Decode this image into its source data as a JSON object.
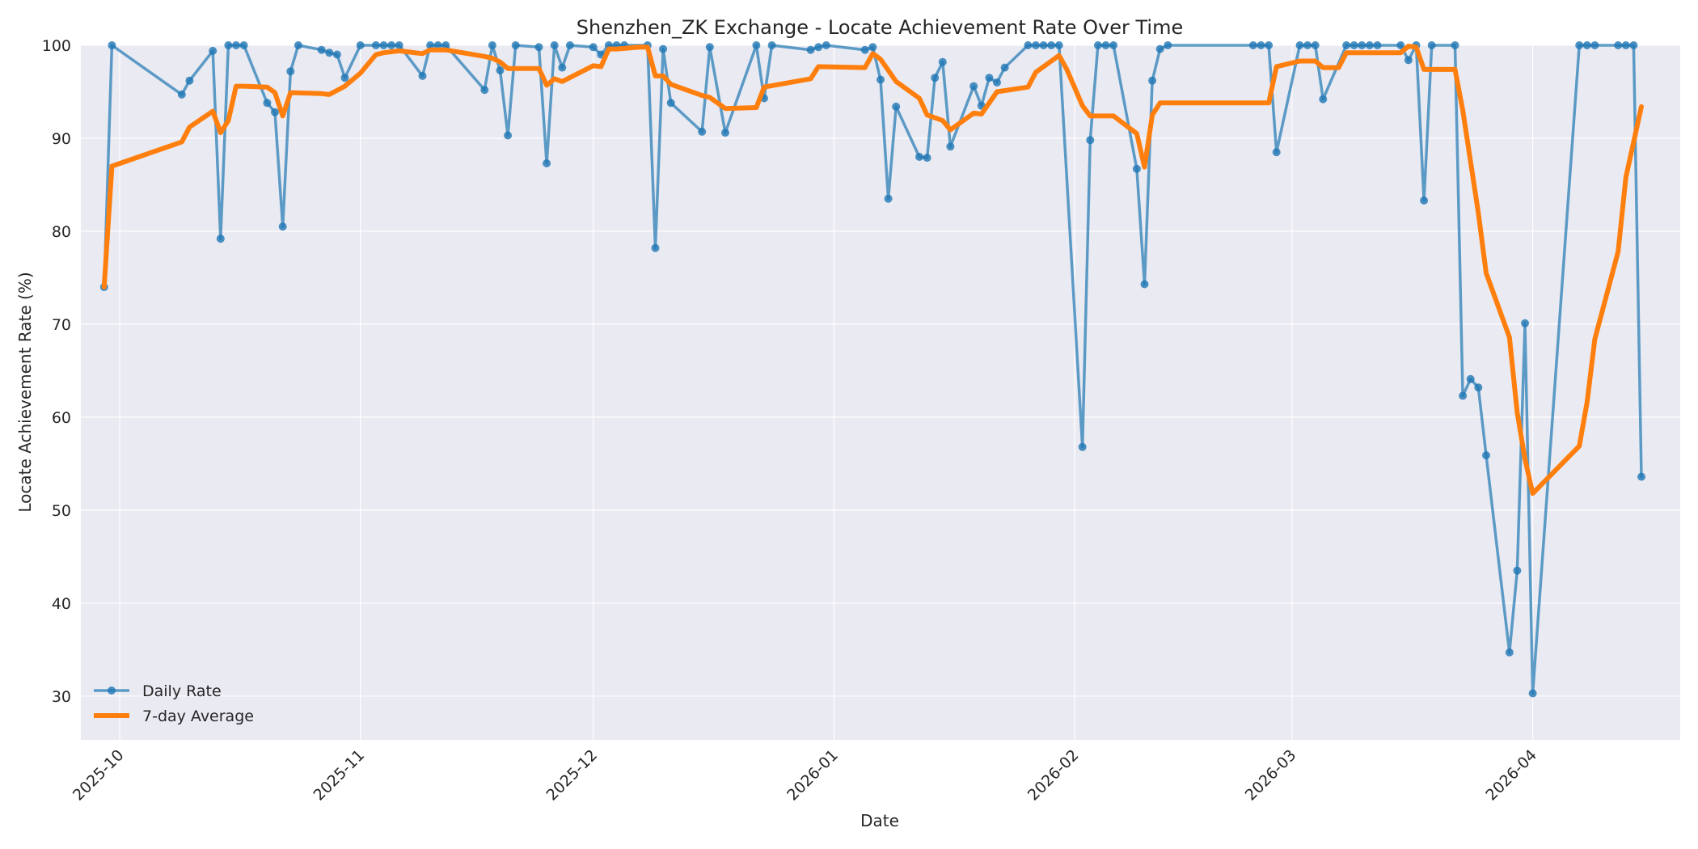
{
  "chart_data": {
    "type": "line",
    "title": "Shenzhen_ZK Exchange - Locate Achievement Rate Over Time",
    "xlabel": "Date",
    "ylabel": "Locate Achievement Rate (%)",
    "xlim": [
      "2025-09-26",
      "2026-04-20"
    ],
    "ylim": [
      25.3,
      100
    ],
    "x_ticks": [
      "2025-10",
      "2025-11",
      "2025-12",
      "2026-01",
      "2026-02",
      "2026-03",
      "2026-04"
    ],
    "y_ticks": [
      30,
      40,
      50,
      60,
      70,
      80,
      90,
      100
    ],
    "grid": true,
    "legend_position": "lower-left",
    "colors": {
      "daily": "#1f77b4",
      "average": "#ff7f0e",
      "plot_bg": "#eaeaf2",
      "grid": "#ffffff"
    },
    "series": [
      {
        "name": "Daily Rate",
        "style": "line-marker",
        "points": [
          [
            "2025-09-29",
            74.0
          ],
          [
            "2025-09-30",
            100.0
          ],
          [
            "2025-10-09",
            94.7
          ],
          [
            "2025-10-10",
            96.2
          ],
          [
            "2025-10-13",
            99.4
          ],
          [
            "2025-10-14",
            79.2
          ],
          [
            "2025-10-15",
            100.0
          ],
          [
            "2025-10-16",
            100.0
          ],
          [
            "2025-10-17",
            100.0
          ],
          [
            "2025-10-20",
            93.8
          ],
          [
            "2025-10-21",
            92.8
          ],
          [
            "2025-10-22",
            80.5
          ],
          [
            "2025-10-23",
            97.2
          ],
          [
            "2025-10-24",
            100.0
          ],
          [
            "2025-10-27",
            99.5
          ],
          [
            "2025-10-28",
            99.2
          ],
          [
            "2025-10-29",
            99.0
          ],
          [
            "2025-10-30",
            96.5
          ],
          [
            "2025-11-01",
            100.0
          ],
          [
            "2025-11-03",
            100.0
          ],
          [
            "2025-11-04",
            100.0
          ],
          [
            "2025-11-05",
            100.0
          ],
          [
            "2025-11-06",
            100.0
          ],
          [
            "2025-11-09",
            96.7
          ],
          [
            "2025-11-10",
            100.0
          ],
          [
            "2025-11-11",
            100.0
          ],
          [
            "2025-11-12",
            100.0
          ],
          [
            "2025-11-17",
            95.2
          ],
          [
            "2025-11-18",
            100.0
          ],
          [
            "2025-11-19",
            97.3
          ],
          [
            "2025-11-20",
            90.3
          ],
          [
            "2025-11-21",
            100.0
          ],
          [
            "2025-11-24",
            99.8
          ],
          [
            "2025-11-25",
            87.3
          ],
          [
            "2025-11-26",
            100.0
          ],
          [
            "2025-11-27",
            97.6
          ],
          [
            "2025-11-28",
            100.0
          ],
          [
            "2025-12-01",
            99.8
          ],
          [
            "2025-12-02",
            99.0
          ],
          [
            "2025-12-03",
            100.0
          ],
          [
            "2025-12-04",
            100.0
          ],
          [
            "2025-12-05",
            100.0
          ],
          [
            "2025-12-08",
            100.0
          ],
          [
            "2025-12-09",
            78.2
          ],
          [
            "2025-12-10",
            99.6
          ],
          [
            "2025-12-11",
            93.8
          ],
          [
            "2025-12-15",
            90.7
          ],
          [
            "2025-12-16",
            99.8
          ],
          [
            "2025-12-18",
            90.6
          ],
          [
            "2025-12-22",
            100.0
          ],
          [
            "2025-12-23",
            94.3
          ],
          [
            "2025-12-24",
            100.0
          ],
          [
            "2025-12-29",
            99.5
          ],
          [
            "2025-12-30",
            99.8
          ],
          [
            "2025-12-31",
            100.0
          ],
          [
            "2026-01-05",
            99.5
          ],
          [
            "2026-01-06",
            99.8
          ],
          [
            "2026-01-07",
            96.3
          ],
          [
            "2026-01-08",
            83.5
          ],
          [
            "2026-01-09",
            93.4
          ],
          [
            "2026-01-12",
            88.0
          ],
          [
            "2026-01-13",
            87.9
          ],
          [
            "2026-01-14",
            96.5
          ],
          [
            "2026-01-15",
            98.2
          ],
          [
            "2026-01-16",
            89.1
          ],
          [
            "2026-01-19",
            95.6
          ],
          [
            "2026-01-20",
            93.5
          ],
          [
            "2026-01-21",
            96.5
          ],
          [
            "2026-01-22",
            96.0
          ],
          [
            "2026-01-23",
            97.6
          ],
          [
            "2026-01-26",
            100.0
          ],
          [
            "2026-01-27",
            100.0
          ],
          [
            "2026-01-28",
            100.0
          ],
          [
            "2026-01-29",
            100.0
          ],
          [
            "2026-01-30",
            100.0
          ],
          [
            "2026-02-02",
            56.8
          ],
          [
            "2026-02-03",
            89.8
          ],
          [
            "2026-02-04",
            100.0
          ],
          [
            "2026-02-05",
            100.0
          ],
          [
            "2026-02-06",
            100.0
          ],
          [
            "2026-02-09",
            86.7
          ],
          [
            "2026-02-10",
            74.3
          ],
          [
            "2026-02-11",
            96.2
          ],
          [
            "2026-02-12",
            99.6
          ],
          [
            "2026-02-13",
            100.0
          ],
          [
            "2026-02-24",
            100.0
          ],
          [
            "2026-02-25",
            100.0
          ],
          [
            "2026-02-26",
            100.0
          ],
          [
            "2026-02-27",
            88.5
          ],
          [
            "2026-03-02",
            100.0
          ],
          [
            "2026-03-03",
            100.0
          ],
          [
            "2026-03-04",
            100.0
          ],
          [
            "2026-03-05",
            94.2
          ],
          [
            "2026-03-08",
            100.0
          ],
          [
            "2026-03-09",
            100.0
          ],
          [
            "2026-03-10",
            100.0
          ],
          [
            "2026-03-11",
            100.0
          ],
          [
            "2026-03-12",
            100.0
          ],
          [
            "2026-03-15",
            100.0
          ],
          [
            "2026-03-16",
            98.4
          ],
          [
            "2026-03-17",
            100.0
          ],
          [
            "2026-03-18",
            83.3
          ],
          [
            "2026-03-19",
            100.0
          ],
          [
            "2026-03-22",
            100.0
          ],
          [
            "2026-03-23",
            62.3
          ],
          [
            "2026-03-24",
            64.1
          ],
          [
            "2026-03-25",
            63.2
          ],
          [
            "2026-03-26",
            55.9
          ],
          [
            "2026-03-29",
            34.7
          ],
          [
            "2026-03-30",
            43.5
          ],
          [
            "2026-03-31",
            70.1
          ],
          [
            "2026-04-01",
            30.3
          ],
          [
            "2026-04-07",
            100.0
          ],
          [
            "2026-04-08",
            100.0
          ],
          [
            "2026-04-09",
            100.0
          ],
          [
            "2026-04-12",
            100.0
          ],
          [
            "2026-04-13",
            100.0
          ],
          [
            "2026-04-14",
            100.0
          ],
          [
            "2026-04-15",
            53.6
          ]
        ]
      },
      {
        "name": "7-day Average",
        "style": "line",
        "points": [
          [
            "2025-09-29",
            74.0
          ],
          [
            "2025-09-30",
            87.0
          ],
          [
            "2025-10-09",
            89.6
          ],
          [
            "2025-10-10",
            91.2
          ],
          [
            "2025-10-13",
            92.9
          ],
          [
            "2025-10-14",
            90.6
          ],
          [
            "2025-10-15",
            91.9
          ],
          [
            "2025-10-16",
            95.6
          ],
          [
            "2025-10-17",
            95.6
          ],
          [
            "2025-10-20",
            95.5
          ],
          [
            "2025-10-21",
            94.9
          ],
          [
            "2025-10-22",
            92.4
          ],
          [
            "2025-10-23",
            94.9
          ],
          [
            "2025-10-27",
            94.8
          ],
          [
            "2025-10-28",
            94.7
          ],
          [
            "2025-10-30",
            95.6
          ],
          [
            "2025-11-01",
            97.0
          ],
          [
            "2025-11-03",
            99.0
          ],
          [
            "2025-11-04",
            99.2
          ],
          [
            "2025-11-06",
            99.4
          ],
          [
            "2025-11-09",
            99.1
          ],
          [
            "2025-11-10",
            99.5
          ],
          [
            "2025-11-12",
            99.5
          ],
          [
            "2025-11-17",
            98.8
          ],
          [
            "2025-11-18",
            98.6
          ],
          [
            "2025-11-19",
            98.2
          ],
          [
            "2025-11-20",
            97.5
          ],
          [
            "2025-11-24",
            97.5
          ],
          [
            "2025-11-25",
            95.7
          ],
          [
            "2025-11-26",
            96.4
          ],
          [
            "2025-11-27",
            96.1
          ],
          [
            "2025-12-01",
            97.8
          ],
          [
            "2025-12-02",
            97.7
          ],
          [
            "2025-12-03",
            99.6
          ],
          [
            "2025-12-04",
            99.6
          ],
          [
            "2025-12-07",
            99.8
          ],
          [
            "2025-12-08",
            99.8
          ],
          [
            "2025-12-09",
            96.7
          ],
          [
            "2025-12-10",
            96.7
          ],
          [
            "2025-12-11",
            95.8
          ],
          [
            "2025-12-15",
            94.6
          ],
          [
            "2025-12-16",
            94.4
          ],
          [
            "2025-12-18",
            93.2
          ],
          [
            "2025-12-22",
            93.3
          ],
          [
            "2025-12-23",
            95.5
          ],
          [
            "2025-12-29",
            96.4
          ],
          [
            "2025-12-30",
            97.7
          ],
          [
            "2026-01-05",
            97.6
          ],
          [
            "2026-01-06",
            99.1
          ],
          [
            "2026-01-07",
            98.5
          ],
          [
            "2026-01-09",
            96.1
          ],
          [
            "2026-01-12",
            94.3
          ],
          [
            "2026-01-13",
            92.5
          ],
          [
            "2026-01-15",
            91.9
          ],
          [
            "2026-01-16",
            90.9
          ],
          [
            "2026-01-19",
            92.7
          ],
          [
            "2026-01-20",
            92.6
          ],
          [
            "2026-01-22",
            95.0
          ],
          [
            "2026-01-26",
            95.5
          ],
          [
            "2026-01-27",
            97.1
          ],
          [
            "2026-01-28",
            97.7
          ],
          [
            "2026-01-29",
            98.3
          ],
          [
            "2026-01-30",
            98.9
          ],
          [
            "2026-01-31",
            97.4
          ],
          [
            "2026-02-02",
            93.5
          ],
          [
            "2026-02-03",
            92.4
          ],
          [
            "2026-02-06",
            92.4
          ],
          [
            "2026-02-09",
            90.5
          ],
          [
            "2026-02-10",
            86.9
          ],
          [
            "2026-02-11",
            92.5
          ],
          [
            "2026-02-12",
            93.8
          ],
          [
            "2026-02-26",
            93.8
          ],
          [
            "2026-02-27",
            97.7
          ],
          [
            "2026-03-02",
            98.3
          ],
          [
            "2026-03-04",
            98.3
          ],
          [
            "2026-03-05",
            97.6
          ],
          [
            "2026-03-07",
            97.6
          ],
          [
            "2026-03-08",
            99.2
          ],
          [
            "2026-03-15",
            99.2
          ],
          [
            "2026-03-16",
            99.9
          ],
          [
            "2026-03-17",
            99.8
          ],
          [
            "2026-03-18",
            97.4
          ],
          [
            "2026-03-22",
            97.4
          ],
          [
            "2026-03-23",
            93.0
          ],
          [
            "2026-03-25",
            82.0
          ],
          [
            "2026-03-26",
            75.5
          ],
          [
            "2026-03-29",
            68.6
          ],
          [
            "2026-03-30",
            60.5
          ],
          [
            "2026-03-31",
            55.5
          ],
          [
            "2026-04-01",
            51.8
          ],
          [
            "2026-04-07",
            56.9
          ],
          [
            "2026-04-08",
            61.6
          ],
          [
            "2026-04-09",
            68.4
          ],
          [
            "2026-04-12",
            77.8
          ],
          [
            "2026-04-13",
            85.8
          ],
          [
            "2026-04-15",
            93.4
          ]
        ]
      }
    ]
  }
}
